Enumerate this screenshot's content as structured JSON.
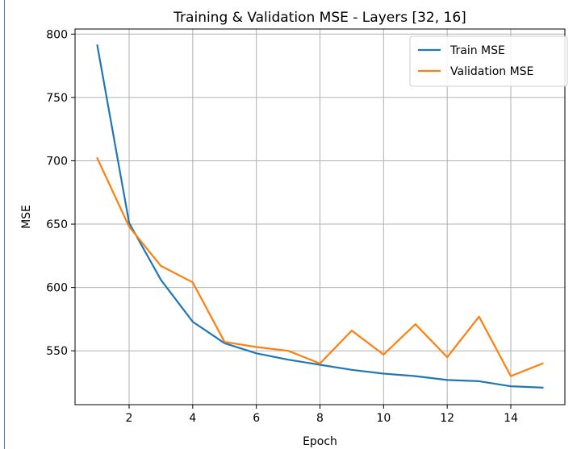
{
  "chart_data": {
    "type": "line",
    "title": "Training & Validation MSE - Layers [32, 16]",
    "xlabel": "Epoch",
    "ylabel": "MSE",
    "x": [
      1,
      2,
      3,
      4,
      5,
      6,
      7,
      8,
      9,
      10,
      11,
      12,
      13,
      14,
      15
    ],
    "xlim": [
      0.3,
      15.7
    ],
    "ylim": [
      507.5,
      804
    ],
    "xticks": [
      2,
      4,
      6,
      8,
      10,
      12,
      14
    ],
    "yticks": [
      550,
      600,
      650,
      700,
      750,
      800
    ],
    "grid": true,
    "legend_position": "top-right",
    "series": [
      {
        "name": "Train MSE",
        "color": "#1f77b4",
        "values": [
          791,
          651,
          606,
          573,
          556,
          548,
          543,
          539,
          535,
          532,
          530,
          527,
          526,
          522,
          521
        ]
      },
      {
        "name": "Validation MSE",
        "color": "#ff7f0e",
        "values": [
          702,
          648,
          617,
          604,
          557,
          553,
          550,
          540,
          566,
          547,
          571,
          545,
          577,
          530,
          540
        ]
      }
    ]
  }
}
